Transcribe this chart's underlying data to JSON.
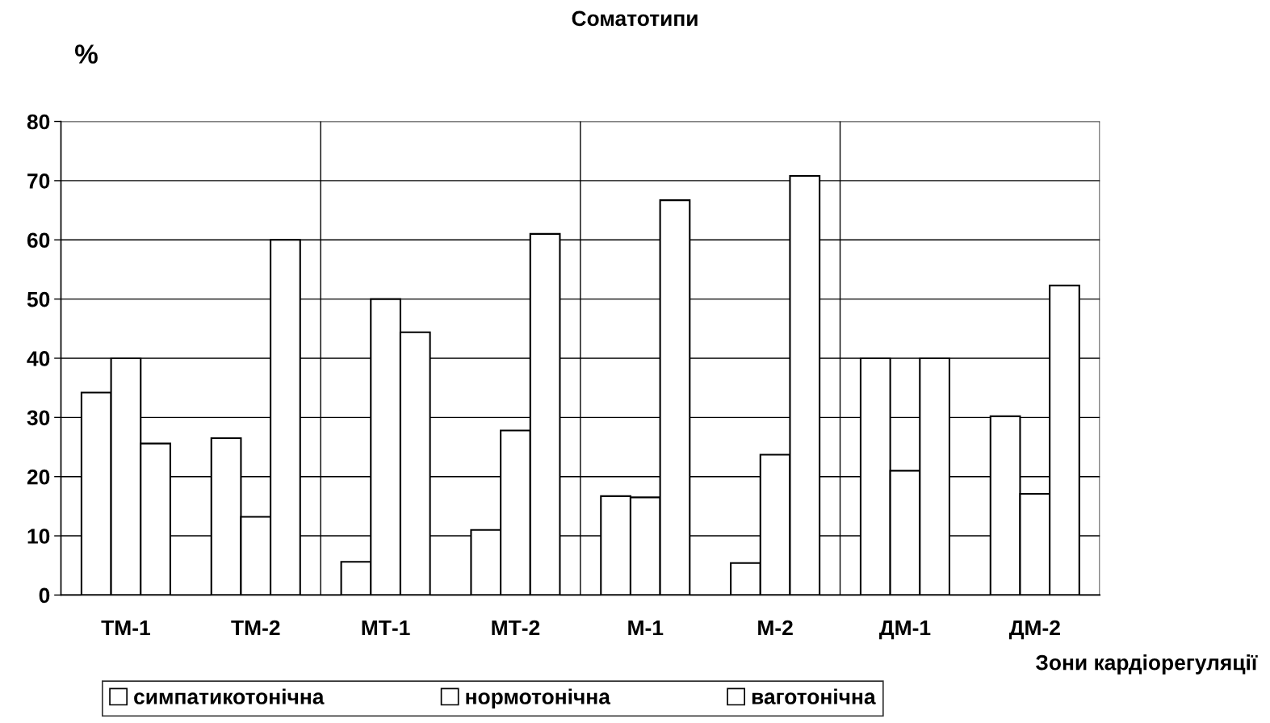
{
  "chart_data": {
    "type": "bar",
    "title": "Соматотипи",
    "ylabel": "%",
    "xlabel": "Зони кардіорегуляції",
    "categories": [
      "ТМ-1",
      "ТМ-2",
      "МТ-1",
      "МТ-2",
      "М-1",
      "М-2",
      "ДМ-1",
      "ДМ-2"
    ],
    "series": [
      {
        "name": "симпатикотонічна",
        "color": "#ffffff",
        "values": [
          34.2,
          26.5,
          5.6,
          11,
          16.7,
          5.4,
          40,
          30.2
        ]
      },
      {
        "name": "нормотонічна",
        "color": "#ffffff",
        "values": [
          40,
          13.2,
          50,
          27.8,
          16.5,
          23.7,
          21,
          17.1
        ]
      },
      {
        "name": "ваготонічна",
        "color": "#ffffff",
        "values": [
          25.6,
          60,
          44.4,
          61,
          66.7,
          70.8,
          40,
          52.3
        ]
      }
    ],
    "ylim": [
      0,
      80
    ],
    "yticks": [
      0,
      10,
      20,
      30,
      40,
      50,
      60,
      70,
      80
    ],
    "grid": true,
    "legend": "bottom"
  }
}
